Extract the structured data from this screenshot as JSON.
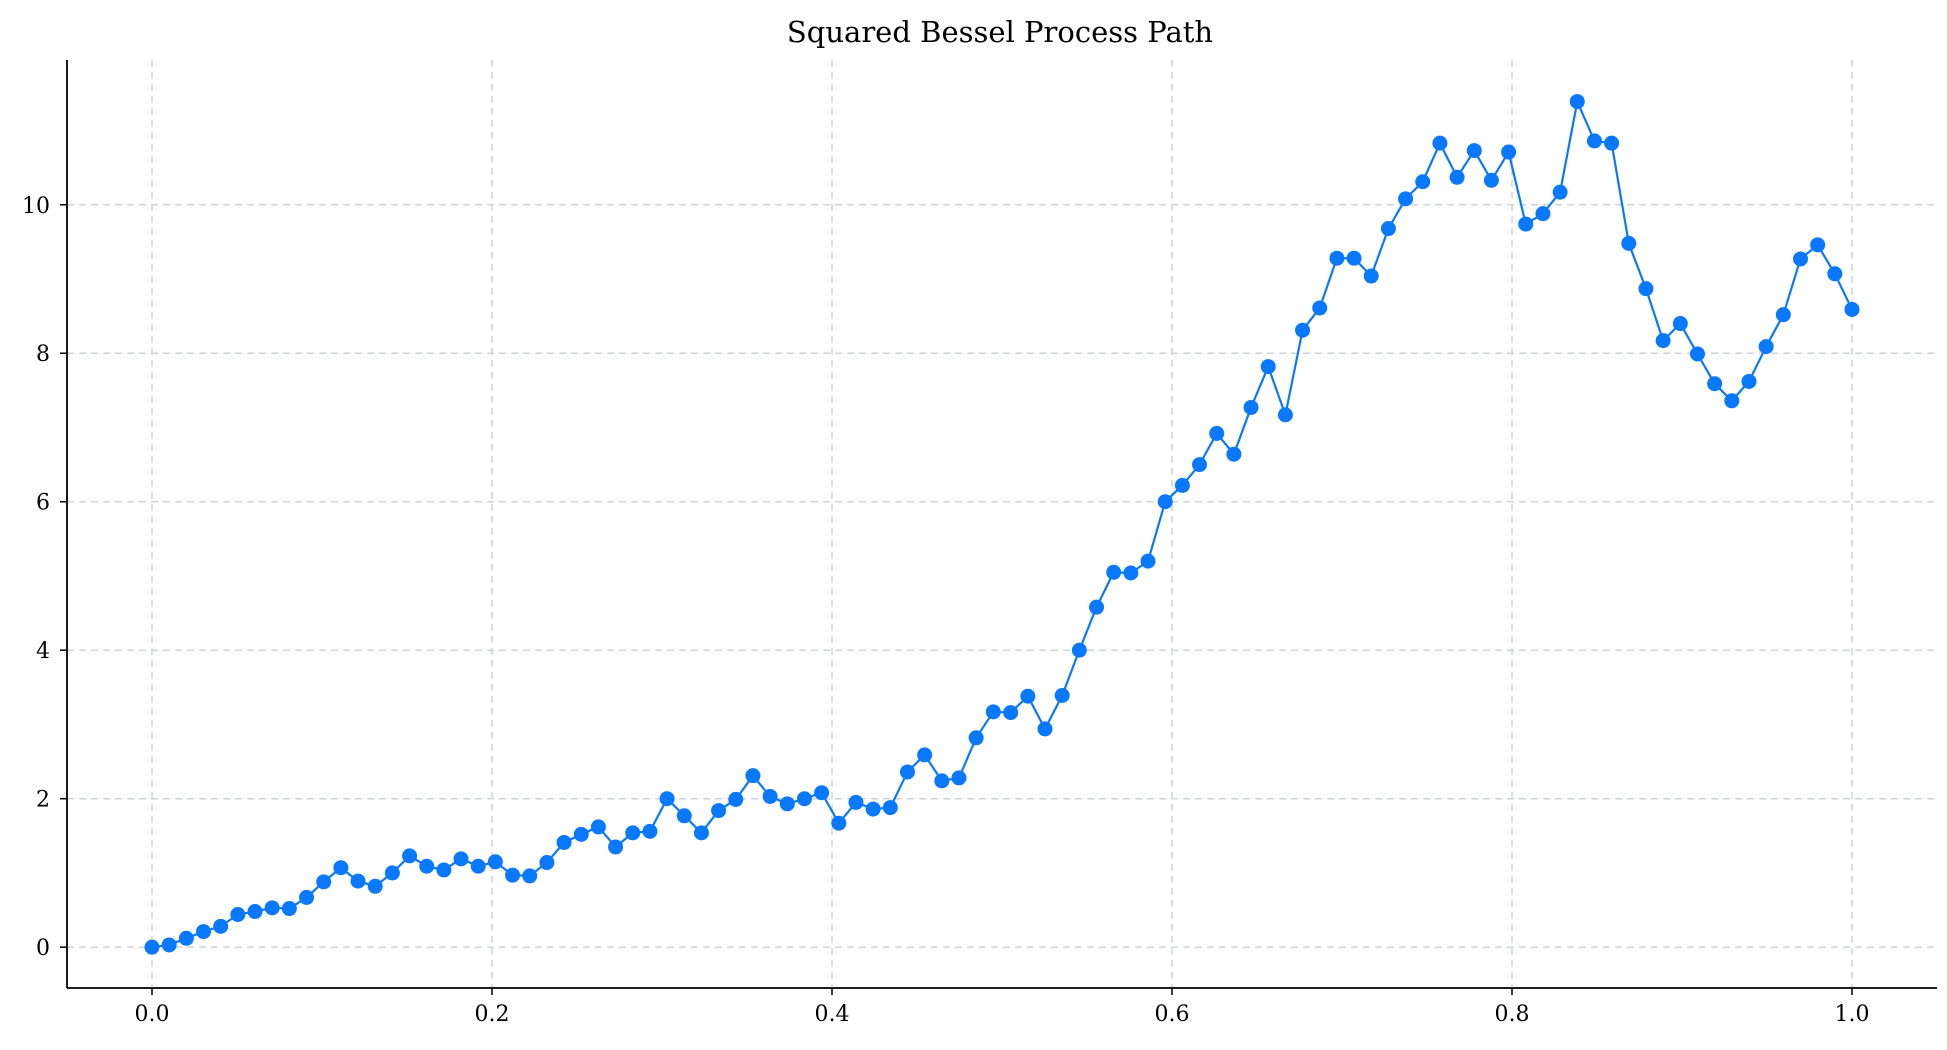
{
  "chart_data": {
    "type": "line",
    "title": "Squared Bessel Process Path",
    "xlabel": "",
    "ylabel": "",
    "xlim": [
      -0.05,
      1.05
    ],
    "ylim": [
      -0.55,
      11.95
    ],
    "xticks": [
      0.0,
      0.2,
      0.4,
      0.6,
      0.8,
      1.0
    ],
    "xtick_labels": [
      "0.0",
      "0.2",
      "0.4",
      "0.6",
      "0.8",
      "1.0"
    ],
    "yticks": [
      0,
      2,
      4,
      6,
      8,
      10
    ],
    "ytick_labels": [
      "0",
      "2",
      "4",
      "6",
      "8",
      "10"
    ],
    "grid": true,
    "color": "#0a78fa",
    "series": [
      {
        "marker": "circle",
        "x": [
          0.0,
          0.0101,
          0.0202,
          0.0303,
          0.0404,
          0.0505,
          0.0606,
          0.0707,
          0.0808,
          0.0909,
          0.101,
          0.1111,
          0.1212,
          0.1313,
          0.1414,
          0.1515,
          0.1616,
          0.1717,
          0.1818,
          0.1919,
          0.202,
          0.2121,
          0.2222,
          0.2323,
          0.2424,
          0.2525,
          0.2626,
          0.2727,
          0.2828,
          0.2929,
          0.303,
          0.3131,
          0.3232,
          0.3333,
          0.3434,
          0.3535,
          0.3636,
          0.3737,
          0.3838,
          0.3939,
          0.404,
          0.4141,
          0.4242,
          0.4343,
          0.4444,
          0.4545,
          0.4646,
          0.4747,
          0.4848,
          0.4949,
          0.5051,
          0.5152,
          0.5253,
          0.5354,
          0.5455,
          0.5556,
          0.5657,
          0.5758,
          0.5859,
          0.596,
          0.6061,
          0.6162,
          0.6263,
          0.6364,
          0.6465,
          0.6566,
          0.6667,
          0.6768,
          0.6869,
          0.697,
          0.7071,
          0.7172,
          0.7273,
          0.7374,
          0.7475,
          0.7576,
          0.7677,
          0.7778,
          0.7879,
          0.798,
          0.8081,
          0.8182,
          0.8283,
          0.8384,
          0.8485,
          0.8586,
          0.8687,
          0.8788,
          0.8889,
          0.899,
          0.9091,
          0.9192,
          0.9293,
          0.9394,
          0.9495,
          0.9596,
          0.9697,
          0.9798,
          0.9899,
          1.0
        ],
        "y": [
          0.0,
          0.03,
          0.12,
          0.21,
          0.28,
          0.44,
          0.48,
          0.53,
          0.52,
          0.67,
          0.88,
          1.07,
          0.89,
          0.82,
          1.0,
          1.23,
          1.09,
          1.04,
          1.19,
          1.09,
          1.15,
          0.97,
          0.96,
          1.14,
          1.41,
          1.52,
          1.62,
          1.35,
          1.54,
          1.56,
          2.0,
          1.77,
          1.54,
          1.84,
          1.99,
          2.31,
          2.03,
          1.93,
          2.0,
          2.08,
          1.67,
          1.95,
          1.86,
          1.88,
          2.36,
          2.59,
          2.24,
          2.28,
          2.82,
          3.17,
          3.16,
          3.38,
          2.94,
          3.39,
          4.0,
          4.58,
          5.05,
          5.04,
          5.2,
          6.0,
          6.22,
          6.5,
          6.92,
          6.64,
          7.27,
          7.82,
          7.17,
          8.31,
          8.61,
          9.28,
          9.28,
          9.04,
          9.68,
          10.08,
          10.31,
          10.83,
          10.37,
          10.73,
          10.33,
          10.71,
          9.74,
          9.88,
          10.17,
          11.39,
          10.86,
          10.83,
          9.48,
          8.87,
          8.17,
          8.4,
          7.99,
          7.59,
          7.36,
          7.62,
          8.09,
          8.52,
          9.27,
          9.46,
          9.07,
          8.59
        ]
      }
    ]
  }
}
